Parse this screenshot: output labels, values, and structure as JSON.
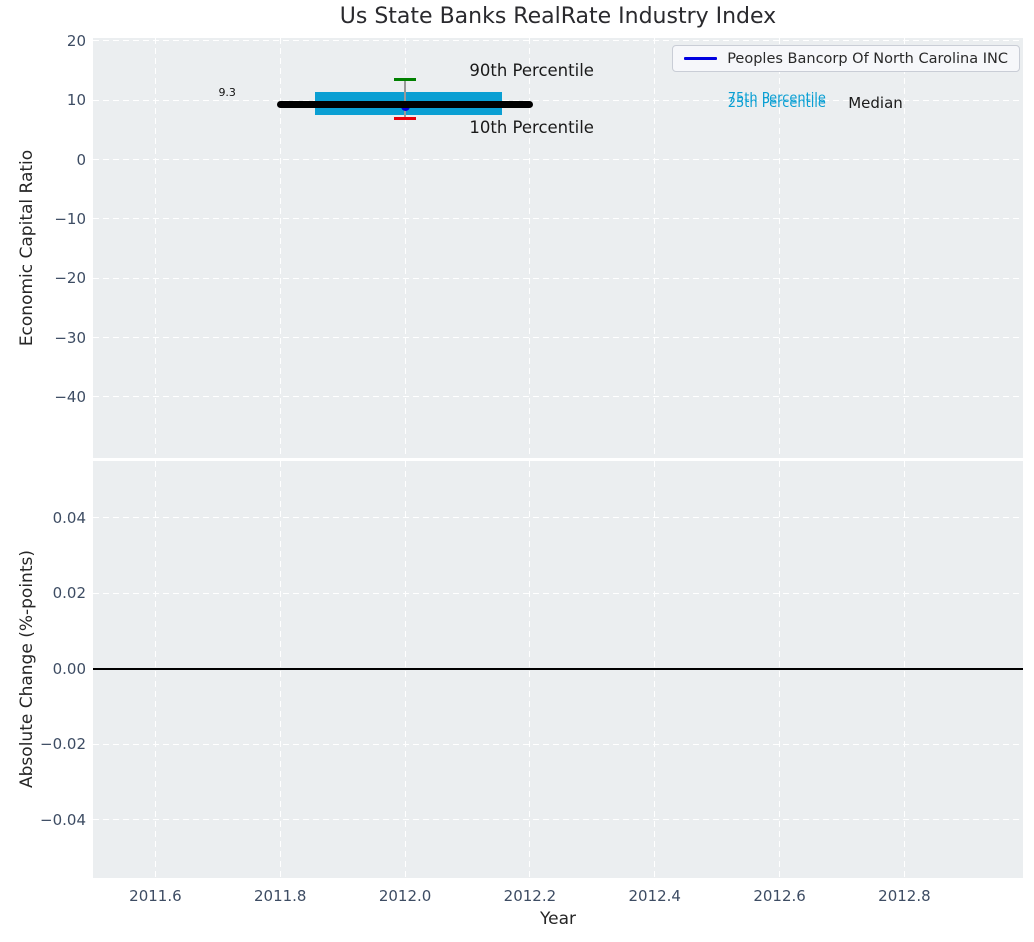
{
  "legend": {
    "label": "Peoples Bancorp Of North Carolina INC",
    "line_color": "#0000e0"
  },
  "colors": {
    "box": "#0a9fd3",
    "median_line": "#000000",
    "p90_cap": "#008000",
    "p10_cap": "#e8000b",
    "whisker": "#999999",
    "company": "#0000e0",
    "axes_bg": "#ebeef0",
    "grid": "#ffffff",
    "tick_label": "#3d4c63",
    "text": "#262626"
  },
  "chart_data": [
    {
      "type": "box-errorbar",
      "title": "Us State Banks RealRate Industry Index",
      "ylabel": "Economic Capital Ratio",
      "xlim": [
        2011.5,
        2012.99
      ],
      "ylim": [
        -50.3,
        20.5
      ],
      "grid": "dashed-white",
      "yticks": [
        {
          "v": 20,
          "label": "20"
        },
        {
          "v": 10,
          "label": "10"
        },
        {
          "v": 0,
          "label": "0"
        },
        {
          "v": -10,
          "label": "−10"
        },
        {
          "v": -20,
          "label": "−20"
        },
        {
          "v": -30,
          "label": "−30"
        },
        {
          "v": -40,
          "label": "−40"
        }
      ],
      "series": [
        {
          "name": "Peoples Bancorp Of North Carolina INC",
          "x": [
            2012.0
          ],
          "y": [
            8.9
          ]
        }
      ],
      "industry_stats": {
        "year": 2012.0,
        "median": 9.3,
        "p10": 7.0,
        "p25": 7.6,
        "p75": 11.4,
        "p90": 13.5,
        "median_line_span": [
          2011.8,
          2012.2
        ],
        "box_span": [
          2011.855,
          2012.155
        ]
      },
      "annotations": [
        {
          "text": "9.3",
          "x": 2011.715,
          "y": 11.2,
          "color": "#111111",
          "size": 11,
          "anchor": "center"
        },
        {
          "text": "90th Percentile",
          "x": 2012.103,
          "y": 14.9,
          "color": "#1a1a1a",
          "size": 16.5,
          "anchor": "left"
        },
        {
          "text": "10th Percentile",
          "x": 2012.103,
          "y": 5.3,
          "color": "#1a1a1a",
          "size": 16.5,
          "anchor": "left"
        },
        {
          "text": "75th Percentile",
          "x": 2012.517,
          "y": 10.25,
          "color": "#0a9fd3",
          "size": 13,
          "anchor": "left"
        },
        {
          "text": "25th Percentile",
          "x": 2012.517,
          "y": 9.35,
          "color": "#0a9fd3",
          "size": 13,
          "anchor": "left"
        },
        {
          "text": "Median",
          "x": 2012.71,
          "y": 9.5,
          "color": "#1a1a1a",
          "size": 15,
          "anchor": "left"
        }
      ],
      "legend_position": "upper right"
    },
    {
      "type": "line",
      "ylabel": "Absolute Change (%-points)",
      "xlabel": "Year",
      "xlim": [
        2011.5,
        2012.99
      ],
      "ylim": [
        -0.0554,
        0.0551
      ],
      "grid": "dashed-white",
      "yticks": [
        {
          "v": 0.04,
          "label": "0.04"
        },
        {
          "v": 0.02,
          "label": "0.02"
        },
        {
          "v": 0.0,
          "label": "0.00"
        },
        {
          "v": -0.02,
          "label": "−0.02"
        },
        {
          "v": -0.04,
          "label": "−0.04"
        }
      ],
      "xticks": [
        {
          "v": 2011.6,
          "label": "2011.6"
        },
        {
          "v": 2011.8,
          "label": "2011.8"
        },
        {
          "v": 2012.0,
          "label": "2012.0"
        },
        {
          "v": 2012.2,
          "label": "2012.2"
        },
        {
          "v": 2012.4,
          "label": "2012.4"
        },
        {
          "v": 2012.6,
          "label": "2012.6"
        },
        {
          "v": 2012.8,
          "label": "2012.8"
        }
      ],
      "zero_line_y": 0.0
    }
  ]
}
